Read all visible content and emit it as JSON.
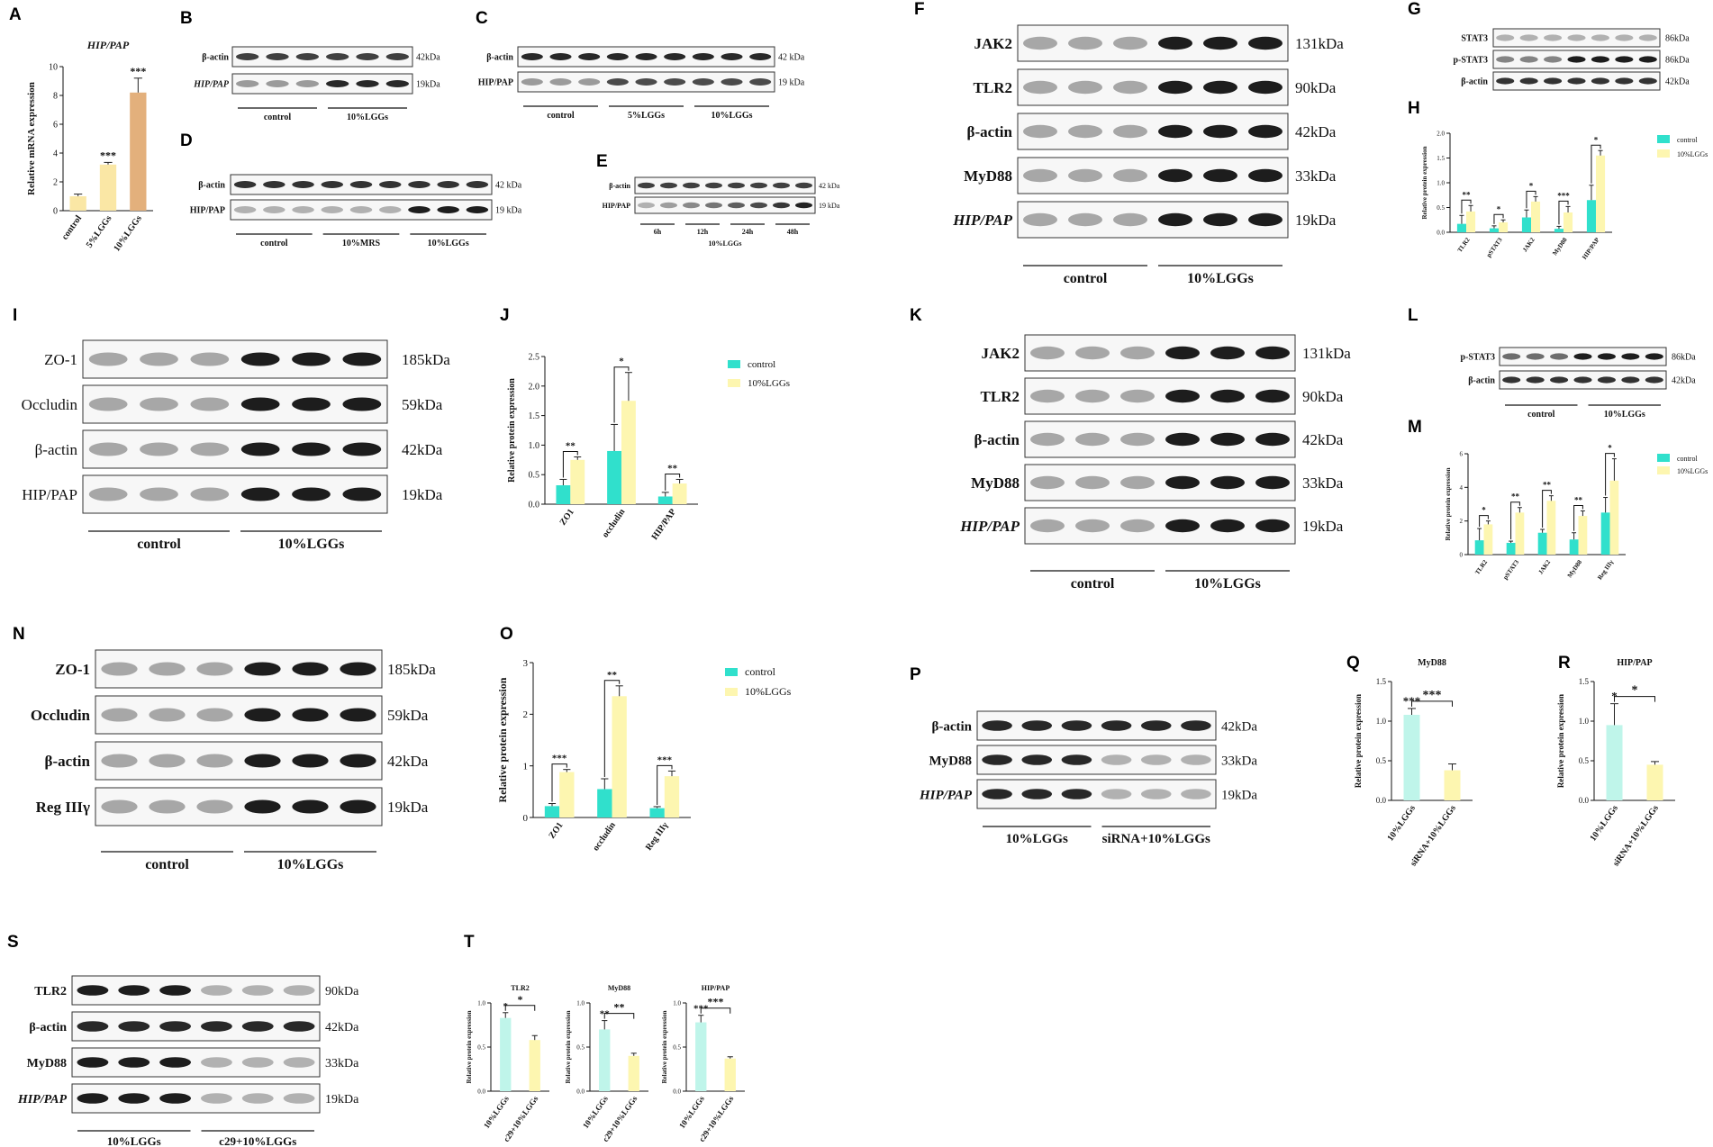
{
  "panels": {
    "A": "A",
    "B": "B",
    "C": "C",
    "D": "D",
    "E": "E",
    "F": "F",
    "G": "G",
    "H": "H",
    "I": "I",
    "J": "J",
    "K": "K",
    "L": "L",
    "M": "M",
    "N": "N",
    "O": "O",
    "P": "P",
    "Q": "Q",
    "R": "R",
    "S": "S",
    "T": "T"
  },
  "colors": {
    "control": "#30e0cc",
    "lggs": "#fdf6b0",
    "siRNA_ctrl": "#bff5ea",
    "orange": "#e3b07c",
    "pale_yellow": "#fae7a5"
  },
  "blots": {
    "B": {
      "rows": [
        {
          "name": "β-actin",
          "kda": "42kDa"
        },
        {
          "name": "HIP/PAP",
          "kda": "19kDa"
        }
      ],
      "groups": [
        "control",
        "10%LGGs"
      ]
    },
    "C": {
      "rows": [
        {
          "name": "β-actin",
          "kda": "42 kDa"
        },
        {
          "name": "HIP/PAP",
          "kda": "19 kDa"
        }
      ],
      "groups": [
        "control",
        "5%LGGs",
        "10%LGGs"
      ]
    },
    "D": {
      "rows": [
        {
          "name": "β-actin",
          "kda": "42 kDa"
        },
        {
          "name": "HIP/PAP",
          "kda": "19 kDa"
        }
      ],
      "groups": [
        "control",
        "10%MRS",
        "10%LGGs"
      ]
    },
    "E": {
      "rows": [
        {
          "name": "β-actin",
          "kda": "42 kDa"
        },
        {
          "name": "HIP/PAP",
          "kda": "19 kDa"
        }
      ],
      "groups": [
        "6h",
        "12h",
        "24h",
        "48h"
      ],
      "footer": "10%LGGs"
    },
    "F": {
      "rows": [
        {
          "name": "JAK2",
          "kda": "131kDa"
        },
        {
          "name": "TLR2",
          "kda": "90kDa"
        },
        {
          "name": "β-actin",
          "kda": "42kDa"
        },
        {
          "name": "MyD88",
          "kda": "33kDa"
        },
        {
          "name": "HIP/PAP",
          "kda": "19kDa"
        }
      ],
      "groups": [
        "control",
        "10%LGGs"
      ]
    },
    "G": {
      "rows": [
        {
          "name": "STAT3",
          "kda": "86kDa"
        },
        {
          "name": "p-STAT3",
          "kda": "86kDa"
        },
        {
          "name": "β-actin",
          "kda": "42kDa"
        }
      ]
    },
    "I": {
      "rows": [
        {
          "name": "ZO-1",
          "kda": "185kDa"
        },
        {
          "name": "Occludin",
          "kda": "59kDa"
        },
        {
          "name": "β-actin",
          "kda": "42kDa"
        },
        {
          "name": "HIP/PAP",
          "kda": "19kDa"
        }
      ],
      "groups": [
        "control",
        "10%LGGs"
      ]
    },
    "K": {
      "rows": [
        {
          "name": "JAK2",
          "kda": "131kDa"
        },
        {
          "name": "TLR2",
          "kda": "90kDa"
        },
        {
          "name": "β-actin",
          "kda": "42kDa"
        },
        {
          "name": "MyD88",
          "kda": "33kDa"
        },
        {
          "name": "HIP/PAP",
          "kda": "19kDa"
        }
      ],
      "groups": [
        "control",
        "10%LGGs"
      ]
    },
    "L": {
      "rows": [
        {
          "name": "p-STAT3",
          "kda": "86kDa"
        },
        {
          "name": "β-actin",
          "kda": "42kDa"
        }
      ],
      "groups": [
        "control",
        "10%LGGs"
      ]
    },
    "N": {
      "rows": [
        {
          "name": "ZO-1",
          "kda": "185kDa"
        },
        {
          "name": "Occludin",
          "kda": "59kDa"
        },
        {
          "name": "β-actin",
          "kda": "42kDa"
        },
        {
          "name": "Reg IIIγ",
          "kda": "19kDa"
        }
      ],
      "groups": [
        "control",
        "10%LGGs"
      ]
    },
    "P": {
      "rows": [
        {
          "name": "β-actin",
          "kda": "42kDa"
        },
        {
          "name": "MyD88",
          "kda": "33kDa"
        },
        {
          "name": "HIP/PAP",
          "kda": "19kDa"
        }
      ],
      "groups": [
        "10%LGGs",
        "siRNA+10%LGGs"
      ]
    },
    "S": {
      "rows": [
        {
          "name": "TLR2",
          "kda": "90kDa"
        },
        {
          "name": "β-actin",
          "kda": "42kDa"
        },
        {
          "name": "MyD88",
          "kda": "33kDa"
        },
        {
          "name": "HIP/PAP",
          "kda": "19kDa"
        }
      ],
      "groups": [
        "10%LGGs",
        "c29+10%LGGs"
      ]
    }
  },
  "chart_data": [
    {
      "panel": "A",
      "type": "bar",
      "title": "HIP/PAP",
      "ylabel": "Relative mRNA expression",
      "categories": [
        "control",
        "5%LGGs",
        "10%LGGs"
      ],
      "values": [
        1.0,
        3.2,
        8.2
      ],
      "errors": [
        0.15,
        0.15,
        1.0
      ],
      "ylim": [
        0,
        10
      ],
      "yticks": [
        "0",
        "2",
        "4",
        "6",
        "8",
        "10"
      ],
      "sig": [
        "",
        "***",
        "***"
      ]
    },
    {
      "panel": "H",
      "type": "bar",
      "ylabel": "Relative protein expression",
      "categories": [
        "TLR2",
        "pSTAT3",
        "JAK2",
        "MyD88",
        "HIP/PAP"
      ],
      "ylim": [
        0,
        2.0
      ],
      "yticks": [
        "0.0",
        "0.5",
        "1.0",
        "1.5",
        "2.0"
      ],
      "series": [
        {
          "name": "control",
          "values": [
            0.17,
            0.08,
            0.3,
            0.07,
            0.65
          ],
          "errors": [
            0.17,
            0.05,
            0.15,
            0.05,
            0.3
          ]
        },
        {
          "name": "10%LGGs",
          "values": [
            0.42,
            0.2,
            0.62,
            0.4,
            1.55
          ],
          "errors": [
            0.12,
            0.05,
            0.1,
            0.12,
            0.1
          ]
        }
      ],
      "sig": [
        "**",
        "*",
        "*",
        "***",
        "*"
      ]
    },
    {
      "panel": "J",
      "type": "bar",
      "ylabel": "Relative protein expression",
      "categories": [
        "ZO1",
        "occludin",
        "HIP/PAP"
      ],
      "ylim": [
        0,
        2.5
      ],
      "yticks": [
        "0.0",
        "0.5",
        "1.0",
        "1.5",
        "2.0",
        "2.5"
      ],
      "series": [
        {
          "name": "control",
          "values": [
            0.32,
            0.9,
            0.13
          ],
          "errors": [
            0.1,
            0.45,
            0.07
          ]
        },
        {
          "name": "10%LGGs",
          "values": [
            0.75,
            1.75,
            0.35
          ],
          "errors": [
            0.05,
            0.48,
            0.07
          ]
        }
      ],
      "sig": [
        "**",
        "*",
        "**"
      ]
    },
    {
      "panel": "M",
      "type": "bar",
      "ylabel": "Relative protein expression",
      "categories": [
        "TLR2",
        "pSTAT3",
        "JAK2",
        "MyD88",
        "Reg IIIγ"
      ],
      "ylim": [
        0,
        6
      ],
      "yticks": [
        "0",
        "2",
        "4",
        "6"
      ],
      "series": [
        {
          "name": "control",
          "values": [
            0.85,
            0.7,
            1.3,
            0.9,
            2.5
          ],
          "errors": [
            0.7,
            0.1,
            0.2,
            0.4,
            0.9
          ]
        },
        {
          "name": "10%LGGs",
          "values": [
            1.8,
            2.5,
            3.2,
            2.3,
            4.4
          ],
          "errors": [
            0.2,
            0.3,
            0.3,
            0.3,
            1.3
          ]
        }
      ],
      "sig": [
        "*",
        "**",
        "**",
        "**",
        "*"
      ]
    },
    {
      "panel": "O",
      "type": "bar",
      "ylabel": "Relative protein expression",
      "categories": [
        "ZO1",
        "occludin",
        "Reg IIIγ"
      ],
      "ylim": [
        0,
        3
      ],
      "yticks": [
        "0",
        "1",
        "2",
        "3"
      ],
      "series": [
        {
          "name": "control",
          "values": [
            0.22,
            0.55,
            0.18
          ],
          "errors": [
            0.05,
            0.2,
            0.03
          ]
        },
        {
          "name": "10%LGGs",
          "values": [
            0.88,
            2.35,
            0.8
          ],
          "errors": [
            0.05,
            0.2,
            0.1
          ]
        }
      ],
      "sig": [
        "***",
        "**",
        "***"
      ]
    },
    {
      "panel": "Q",
      "type": "bar",
      "title": "MyD88",
      "ylabel": "Relative protein expression",
      "categories": [
        "10%LGGs",
        "siRNA+10%LGGs"
      ],
      "values": [
        1.08,
        0.38
      ],
      "errors": [
        0.08,
        0.08
      ],
      "ylim": [
        0,
        1.5
      ],
      "yticks": [
        "0.0",
        "0.5",
        "1.0",
        "1.5"
      ],
      "sig": [
        "***"
      ]
    },
    {
      "panel": "R",
      "type": "bar",
      "title": "HIP/PAP",
      "ylabel": "Relative protein expression",
      "categories": [
        "10%LGGs",
        "siRNA+10%LGGs"
      ],
      "values": [
        0.95,
        0.45
      ],
      "errors": [
        0.27,
        0.04
      ],
      "ylim": [
        0,
        1.5
      ],
      "yticks": [
        "0.0",
        "0.5",
        "1.0",
        "1.5"
      ],
      "sig": [
        "*"
      ]
    },
    {
      "panel": "T1",
      "type": "bar",
      "title": "TLR2",
      "ylabel": "Relative protein expression",
      "categories": [
        "10%LGGs",
        "c29+10%LGGs"
      ],
      "values": [
        0.83,
        0.58
      ],
      "errors": [
        0.06,
        0.05
      ],
      "ylim": [
        0,
        1.0
      ],
      "yticks": [
        "0.0",
        "0.5",
        "1.0"
      ],
      "sig": [
        "*"
      ]
    },
    {
      "panel": "T2",
      "type": "bar",
      "title": "MyD88",
      "ylabel": "Relative protein expression",
      "categories": [
        "10%LGGs",
        "c29+10%LGGs"
      ],
      "values": [
        0.7,
        0.4
      ],
      "errors": [
        0.1,
        0.03
      ],
      "ylim": [
        0,
        1.0
      ],
      "yticks": [
        "0.0",
        "0.5",
        "1.0"
      ],
      "sig": [
        "**"
      ]
    },
    {
      "panel": "T3",
      "type": "bar",
      "title": "HIP/PAP",
      "ylabel": "Relative protein expression",
      "categories": [
        "10%LGGs",
        "c29+10%LGGs"
      ],
      "values": [
        0.78,
        0.37
      ],
      "errors": [
        0.08,
        0.02
      ],
      "ylim": [
        0,
        1.0
      ],
      "yticks": [
        "0.0",
        "0.5",
        "1.0"
      ],
      "sig": [
        "***"
      ]
    }
  ]
}
